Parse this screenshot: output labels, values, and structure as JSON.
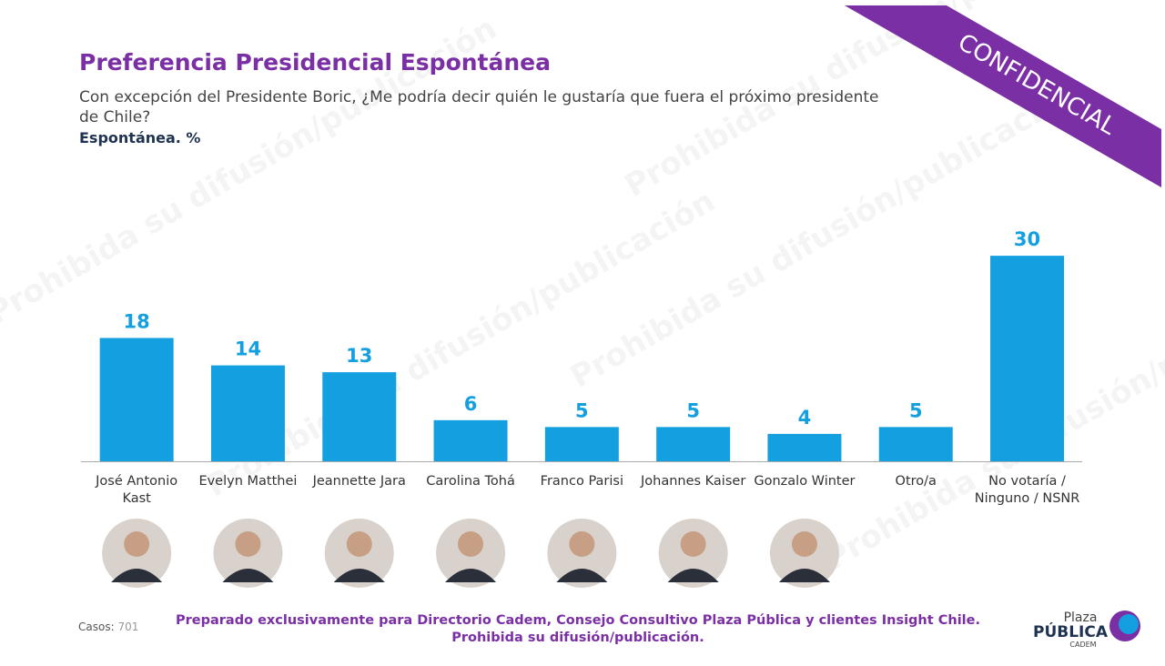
{
  "chart_data": {
    "type": "bar",
    "title": "Preferencia Presidencial Espontánea",
    "subtitle": "Con excepción del Presidente Boric, ¿Me podría decir quién le gustaría que fuera el próximo presidente de Chile?",
    "measure": "Espontánea. %",
    "categories": [
      "José Antonio Kast",
      "Evelyn Matthei",
      "Jeannette Jara",
      "Carolina Tohá",
      "Franco Parisi",
      "Johannes Kaiser",
      "Gonzalo Winter",
      "Otro/a",
      "No votaría / Ninguno / NSNR"
    ],
    "values": [
      18,
      14,
      13,
      6,
      5,
      5,
      4,
      5,
      30
    ],
    "color": "#14a0e0"
  },
  "badge": "CONFIDENCIAL",
  "watermark": "Prohibida su difusión/publicación",
  "footer": {
    "cases_label": "Casos:",
    "cases": "701",
    "line1": "Preparado exclusivamente para Directorio Cadem, Consejo Consultivo Plaza Pública y clientes Insight Chile.",
    "line2": "Prohibida su difusión/publicación."
  },
  "logo": {
    "top": "Plaza",
    "main": "PÚBLICA",
    "sub": "CADEM"
  }
}
